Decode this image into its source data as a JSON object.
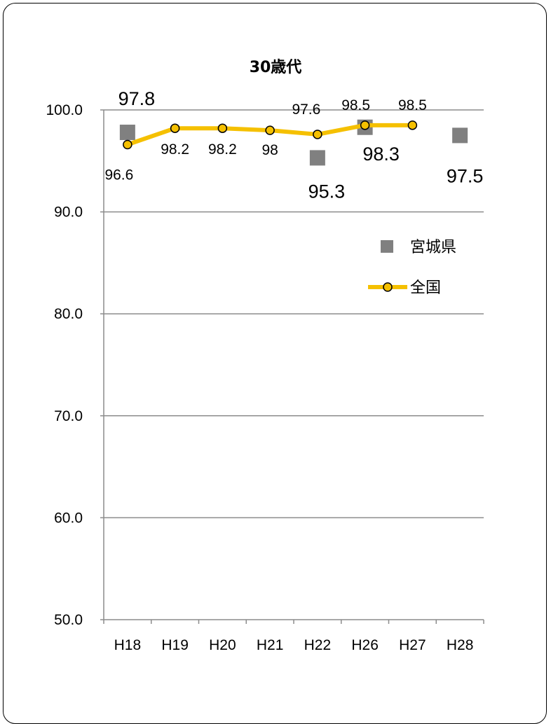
{
  "chart_data": {
    "type": "line",
    "title": "30歳代",
    "categories": [
      "H18",
      "H19",
      "H20",
      "H21",
      "H22",
      "H26",
      "H27",
      "H28"
    ],
    "ylim": [
      50.0,
      100.0
    ],
    "yticks": [
      "50.0",
      "60.0",
      "70.0",
      "80.0",
      "90.0",
      "100.0"
    ],
    "ytick_values": [
      50,
      60,
      70,
      80,
      90,
      100
    ],
    "grid": true,
    "legend_position": "right",
    "series": [
      {
        "name": "宮城県",
        "style": "markers-square",
        "color": "#808080",
        "values": [
          97.8,
          null,
          null,
          null,
          95.3,
          98.3,
          null,
          97.5
        ],
        "labels": [
          "97.8",
          "",
          "",
          "",
          "95.3",
          "98.3",
          "",
          "97.5"
        ]
      },
      {
        "name": "全国",
        "style": "line-circle",
        "color": "#F5C000",
        "values": [
          96.6,
          98.2,
          98.2,
          98.0,
          97.6,
          98.5,
          98.5,
          null
        ],
        "labels": [
          "96.6",
          "98.2",
          "98.2",
          "98",
          "97.6",
          "98.5",
          "98.5",
          ""
        ]
      }
    ]
  }
}
